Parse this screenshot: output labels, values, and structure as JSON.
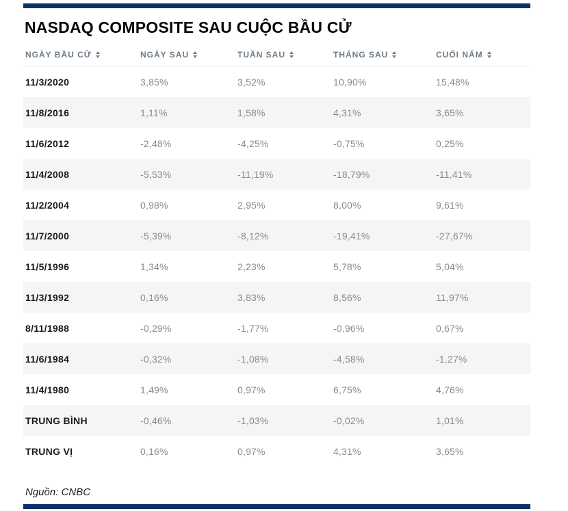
{
  "title": "NASDAQ COMPOSITE SAU CUỘC BẦU CỬ",
  "source_note": "Nguồn: CNBC",
  "colors": {
    "accent_navy": "#0b3167",
    "alt_row_bg": "#f5f5f5",
    "header_text": "#6e7b87",
    "value_text": "#8a8a8a",
    "label_text": "#1a1a1a"
  },
  "icons": {
    "sort_icon": "▲▼"
  },
  "chart_data": {
    "type": "table",
    "title": "NASDAQ COMPOSITE SAU CUỘC BẦU CỬ",
    "columns": [
      "NGÀY BẦU CỬ",
      "NGÀY SAU",
      "TUẦN SAU",
      "THÁNG SAU",
      "CUỐI NĂM"
    ],
    "rows": [
      {
        "label": "11/3/2020",
        "values": [
          "3,85%",
          "3,52%",
          "10,90%",
          "15,48%"
        ]
      },
      {
        "label": "11/8/2016",
        "values": [
          "1,11%",
          "1,58%",
          "4,31%",
          "3,65%"
        ]
      },
      {
        "label": "11/6/2012",
        "values": [
          "-2,48%",
          "-4,25%",
          "-0,75%",
          "0,25%"
        ]
      },
      {
        "label": "11/4/2008",
        "values": [
          "-5,53%",
          "-11,19%",
          "-18,79%",
          "-11,41%"
        ]
      },
      {
        "label": "11/2/2004",
        "values": [
          "0,98%",
          "2,95%",
          "8,00%",
          "9,61%"
        ]
      },
      {
        "label": "11/7/2000",
        "values": [
          "-5,39%",
          "-8,12%",
          "-19,41%",
          "-27,67%"
        ]
      },
      {
        "label": "11/5/1996",
        "values": [
          "1,34%",
          "2,23%",
          "5,78%",
          "5,04%"
        ]
      },
      {
        "label": "11/3/1992",
        "values": [
          "0,16%",
          "3,83%",
          "8,56%",
          "11,97%"
        ]
      },
      {
        "label": "8/11/1988",
        "values": [
          "-0,29%",
          "-1,77%",
          "-0,96%",
          "0,67%"
        ]
      },
      {
        "label": "11/6/1984",
        "values": [
          "-0,32%",
          "-1,08%",
          "-4,58%",
          "-1,27%"
        ]
      },
      {
        "label": "11/4/1980",
        "values": [
          "1,49%",
          "0,97%",
          "6,75%",
          "4,76%"
        ]
      },
      {
        "label": "TRUNG BÌNH",
        "values": [
          "-0,46%",
          "-1,03%",
          "-0,02%",
          "1,01%"
        ]
      },
      {
        "label": "TRUNG VỊ",
        "values": [
          "0,16%",
          "0,97%",
          "4,31%",
          "3,65%"
        ]
      }
    ],
    "source": "Nguồn: CNBC"
  }
}
